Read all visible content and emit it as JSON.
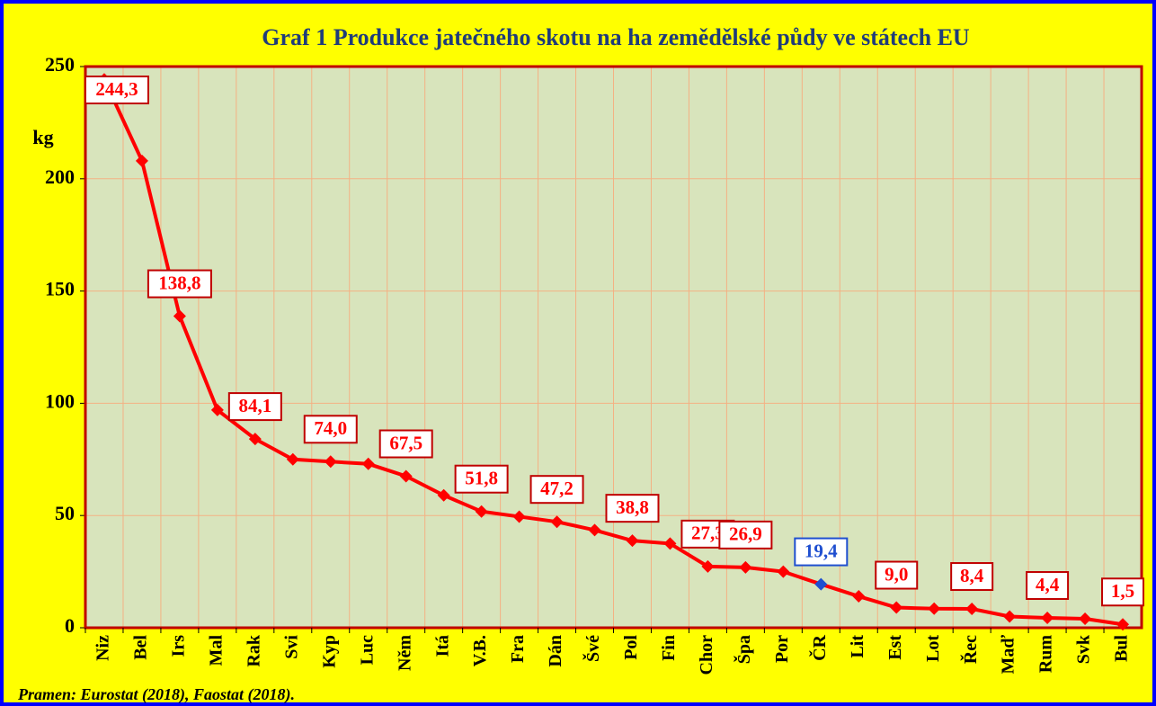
{
  "chart_data": {
    "type": "line",
    "title": "Graf 1 Produkce jatečného skotu na ha zemědělské půdy ve státech EU",
    "y_label": "kg",
    "source": "Pramen:  Eurostat (2018), Faostat (2018).",
    "categories": [
      "Niz",
      "Bel",
      "Irs",
      "Mal",
      "Rak",
      "Svi",
      "Kyp",
      "Luc",
      "Něm",
      "Itá",
      "V.B.",
      "Fra",
      "Dán",
      "Švé",
      "Pol",
      "Fin",
      "Chor",
      "Špa",
      "Por",
      "ČR",
      "Lit",
      "Est",
      "Lot",
      "Řec",
      "Maď",
      "Rum",
      "Svk",
      "Bul"
    ],
    "values": [
      244.3,
      208,
      138.8,
      97,
      84.1,
      75,
      74.0,
      73,
      67.5,
      59,
      51.8,
      49.5,
      47.2,
      43.5,
      38.8,
      37.5,
      27.3,
      26.9,
      25,
      19.4,
      14,
      9.0,
      8.5,
      8.4,
      5,
      4.4,
      4,
      1.5
    ],
    "value_labels": [
      "244,3",
      null,
      "138,8",
      null,
      "84,1",
      null,
      "74,0",
      null,
      "67,5",
      null,
      "51,8",
      null,
      "47,2",
      null,
      "38,8",
      null,
      "27,3",
      "26,9",
      null,
      "19,4",
      null,
      "9,0",
      null,
      "8,4",
      null,
      "4,4",
      null,
      "1,5"
    ],
    "color": "#ff0000",
    "marker_colors": [
      "#ff0000",
      "#ff0000",
      "#ff0000",
      "#ff0000",
      "#ff0000",
      "#ff0000",
      "#ff0000",
      "#ff0000",
      "#ff0000",
      "#ff0000",
      "#ff0000",
      "#ff0000",
      "#ff0000",
      "#ff0000",
      "#ff0000",
      "#ff0000",
      "#ff0000",
      "#ff0000",
      "#ff0000",
      "#1f4fd0",
      "#ff0000",
      "#ff0000",
      "#ff0000",
      "#ff0000",
      "#ff0000",
      "#ff0000",
      "#ff0000",
      "#ff0000"
    ],
    "ylim": [
      0,
      250
    ],
    "yticks": [
      0,
      50,
      100,
      150,
      200,
      250
    ],
    "grid": true
  }
}
